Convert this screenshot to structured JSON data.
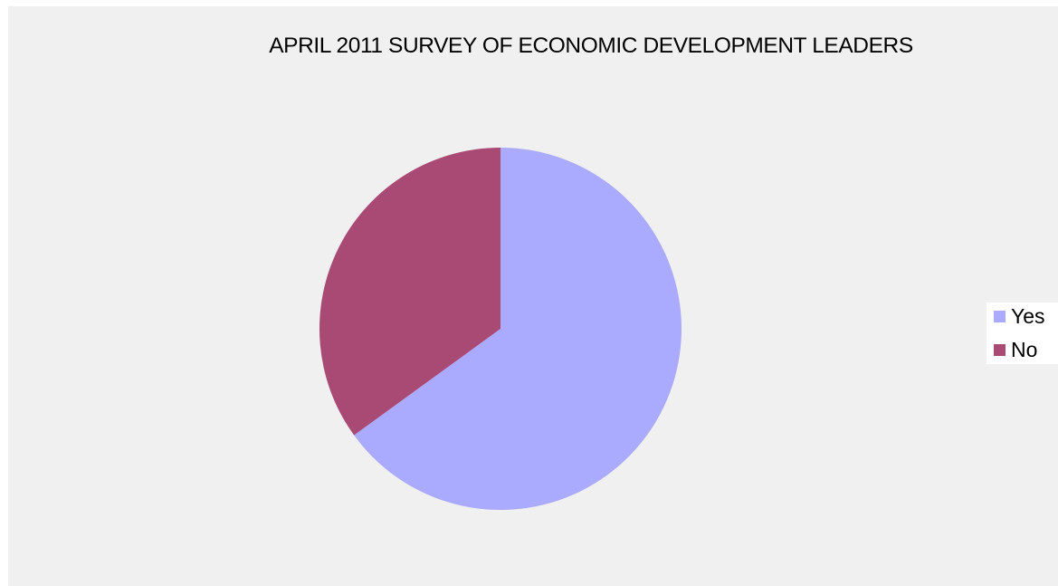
{
  "chart_data": {
    "type": "pie",
    "title": "APRIL 2011 SURVEY OF ECONOMIC DEVELOPMENT LEADERS",
    "categories": [
      "Yes",
      "No"
    ],
    "values": [
      65,
      35
    ],
    "colors": [
      "#aaaaff",
      "#a94a75"
    ],
    "legend_position": "right",
    "background_color": "#f0f0f0"
  }
}
